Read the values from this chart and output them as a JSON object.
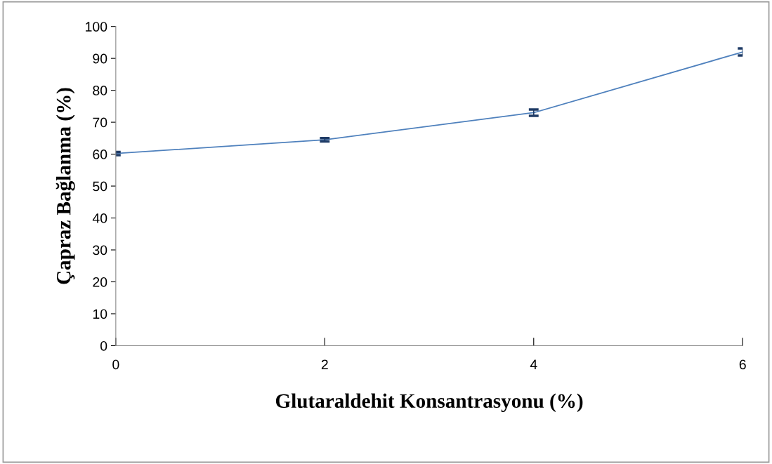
{
  "chart_data": {
    "type": "line",
    "xlabel": "Glutaraldehit Konsantrasyonu (%)",
    "ylabel": "Çapraz Bağlanma (%)",
    "x": [
      0,
      2,
      4,
      6
    ],
    "series": [
      {
        "color": "#4f81bd",
        "values": [
          60.2,
          64.5,
          73.0,
          92.0
        ],
        "errors": [
          0.5,
          0.5,
          1.0,
          1.1
        ]
      }
    ],
    "xlim": [
      0,
      6
    ],
    "xticks": [
      0,
      2,
      4,
      6
    ],
    "ylim": [
      0,
      100
    ],
    "yticks": [
      0,
      10,
      20,
      30,
      40,
      50,
      60,
      70,
      80,
      90,
      100
    ],
    "grid": false,
    "legend": false,
    "marker": "none",
    "line_style": "solid"
  }
}
